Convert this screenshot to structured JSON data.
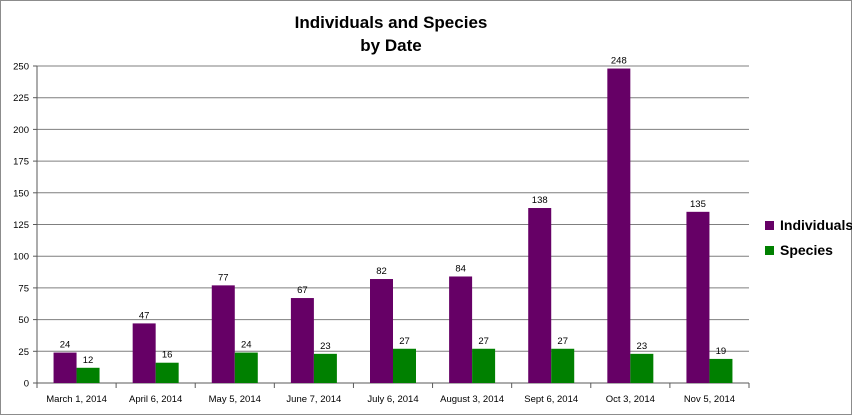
{
  "chart_data": {
    "type": "bar",
    "title": "Individuals and Species",
    "subtitle": "by Date",
    "categories": [
      "March 1, 2014",
      "April 6, 2014",
      "May 5, 2014",
      "June 7, 2014",
      "July 6, 2014",
      "August 3, 2014",
      "Sept 6, 2014",
      "Oct 3, 2014",
      "Nov 5, 2014"
    ],
    "series": [
      {
        "name": "Individuals",
        "color": "#660066",
        "values": [
          24,
          47,
          77,
          67,
          82,
          84,
          138,
          248,
          135
        ]
      },
      {
        "name": "Species",
        "color": "#008000",
        "values": [
          12,
          16,
          24,
          23,
          27,
          27,
          27,
          23,
          19
        ]
      }
    ],
    "ylim": [
      0,
      250
    ],
    "yticks": [
      0,
      25,
      50,
      75,
      100,
      125,
      150,
      175,
      200,
      225,
      250
    ],
    "grid": true,
    "legend_position": "right",
    "data_labels": true
  }
}
